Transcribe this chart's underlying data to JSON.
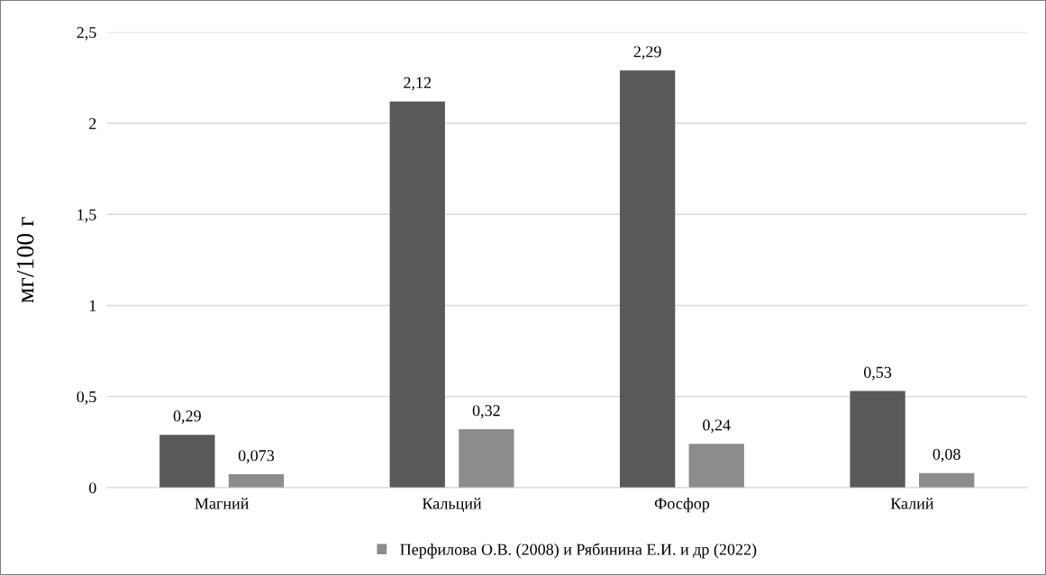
{
  "chart_data": {
    "type": "bar",
    "ylabel": "мг/100 г",
    "categories": [
      "Магний",
      "Кальций",
      "Фосфор",
      "Калий"
    ],
    "series": [
      {
        "color": "#595959",
        "values": [
          0.29,
          2.12,
          2.29,
          0.53
        ],
        "value_labels": [
          "0,29",
          "2,12",
          "2,29",
          "0,53"
        ]
      },
      {
        "name": "Перфилова О.В. (2008) и Рябинина Е.И. и др (2022)",
        "color": "#8c8c8c",
        "values": [
          0.073,
          0.32,
          0.24,
          0.08
        ],
        "value_labels": [
          "0,073",
          "0,32",
          "0,24",
          "0,08"
        ]
      }
    ],
    "ylim": [
      0,
      2.5
    ],
    "yticks": [
      0,
      {
        "value": 0.5,
        "label": "0,5"
      },
      1,
      {
        "value": 1.5,
        "label": "1,5"
      },
      2,
      {
        "value": 2.5,
        "label": "2,5"
      }
    ],
    "grid": "y",
    "legend": "bottom"
  }
}
